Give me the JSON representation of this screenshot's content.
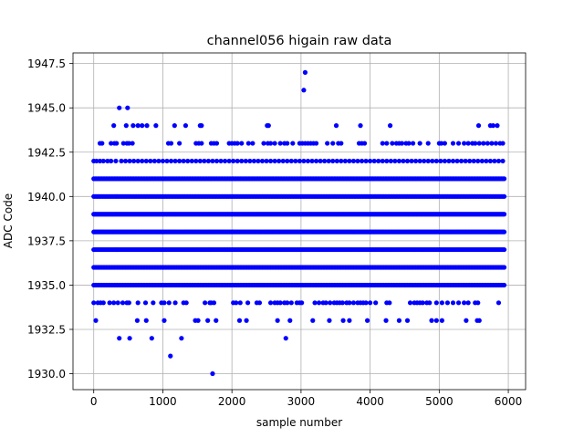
{
  "chart_data": {
    "type": "scatter",
    "title": "channel056 higain raw data",
    "xlabel": "sample number",
    "ylabel": "ADC Code",
    "xlim": [
      -300,
      6250
    ],
    "ylim": [
      1929.1,
      1948.1
    ],
    "xticks": [
      0,
      1000,
      2000,
      3000,
      4000,
      5000,
      6000
    ],
    "xtick_labels": [
      "0",
      "1000",
      "2000",
      "3000",
      "4000",
      "5000",
      "6000"
    ],
    "yticks": [
      1930.0,
      1932.5,
      1935.0,
      1937.5,
      1940.0,
      1942.5,
      1945.0,
      1947.5
    ],
    "ytick_labels": [
      "1930.0",
      "1932.5",
      "1935.0",
      "1937.5",
      "1940.0",
      "1942.5",
      "1945.0",
      "1947.5"
    ],
    "grid": true,
    "marker_color": "#0000ff",
    "n_samples": 5950,
    "dense_levels": [
      1935,
      1936,
      1937,
      1938,
      1939,
      1940,
      1941
    ],
    "sparse_levels": [
      {
        "y": 1942,
        "x": [
          0,
          40,
          90,
          140,
          200,
          250,
          320,
          400,
          460,
          520,
          580,
          640,
          700,
          760,
          820,
          880,
          940,
          1000,
          1060,
          1120,
          1180,
          1240,
          1300,
          1360,
          1420,
          1480,
          1540,
          1600,
          1660,
          1720,
          1780,
          1840,
          1900,
          1960,
          2020,
          2080,
          2140,
          2200,
          2260,
          2320,
          2380,
          2440,
          2500,
          2560,
          2620,
          2680,
          2740,
          2800,
          2860,
          2920,
          2980,
          3040,
          3100,
          3160,
          3220,
          3280,
          3340,
          3400,
          3460,
          3520,
          3580,
          3640,
          3700,
          3760,
          3820,
          3880,
          3940,
          4000,
          4060,
          4120,
          4180,
          4240,
          4300,
          4360,
          4420,
          4480,
          4540,
          4600,
          4660,
          4720,
          4780,
          4840,
          4900,
          4960,
          5020,
          5080,
          5140,
          5200,
          5260,
          5320,
          5380,
          5440,
          5500,
          5560,
          5620,
          5680,
          5740,
          5800,
          5860,
          5920
        ]
      },
      {
        "y": 1943,
        "x": [
          90,
          120,
          250,
          300,
          330,
          430,
          480,
          510,
          560,
          1080,
          1120,
          1240,
          1480,
          1520,
          1560,
          1700,
          1740,
          1780,
          1960,
          2000,
          2040,
          2080,
          2140,
          2240,
          2300,
          2460,
          2520,
          2560,
          2620,
          2700,
          2760,
          2800,
          2880,
          2980,
          3020,
          3060,
          3100,
          3140,
          3180,
          3220,
          3380,
          3460,
          3540,
          3580,
          3840,
          3880,
          3920,
          4180,
          4240,
          4320,
          4380,
          4420,
          4460,
          4520,
          4560,
          4620,
          4720,
          4840,
          5000,
          5030,
          5080,
          5200,
          5280,
          5360,
          5420,
          5480,
          5520,
          5580,
          5640,
          5700,
          5760,
          5820,
          5880,
          5920
        ]
      },
      {
        "y": 1944,
        "x": [
          290,
          470,
          570,
          640,
          700,
          770,
          900,
          1170,
          1330,
          1540,
          1560,
          2510,
          2530,
          3510,
          3860,
          4290,
          5570,
          5740,
          5780,
          5840
        ]
      },
      {
        "y": 1945,
        "x": [
          370,
          490
        ]
      },
      {
        "y": 1946,
        "x": [
          3040
        ]
      },
      {
        "y": 1947,
        "x": [
          3060
        ]
      },
      {
        "y": 1934,
        "x": [
          0,
          60,
          100,
          140,
          230,
          290,
          350,
          420,
          480,
          510,
          640,
          750,
          860,
          980,
          1020,
          1090,
          1180,
          1300,
          1340,
          1610,
          1680,
          1700,
          1740,
          2020,
          2060,
          2120,
          2230,
          2360,
          2400,
          2560,
          2620,
          2660,
          2700,
          2760,
          2800,
          2860,
          2940,
          2980,
          3010,
          3200,
          3260,
          3320,
          3360,
          3420,
          3480,
          3520,
          3560,
          3600,
          3660,
          3700,
          3760,
          3820,
          3860,
          3900,
          3940,
          4000,
          4080,
          4240,
          4280,
          4580,
          4640,
          4680,
          4720,
          4760,
          4820,
          4860,
          4960,
          5040,
          5120,
          5200,
          5280,
          5360,
          5420,
          5520,
          5560,
          5860
        ]
      },
      {
        "y": 1933,
        "x": [
          30,
          630,
          760,
          1020,
          1470,
          1510,
          1650,
          1770,
          2110,
          2210,
          2660,
          2840,
          3170,
          3410,
          3610,
          3700,
          3960,
          4230,
          4420,
          4540,
          4890,
          4960,
          5040,
          5390,
          5550,
          5580
        ]
      },
      {
        "y": 1932,
        "x": [
          370,
          520,
          840,
          1270,
          2780
        ]
      },
      {
        "y": 1931,
        "x": [
          1110
        ]
      },
      {
        "y": 1930,
        "x": [
          1720
        ]
      }
    ]
  }
}
